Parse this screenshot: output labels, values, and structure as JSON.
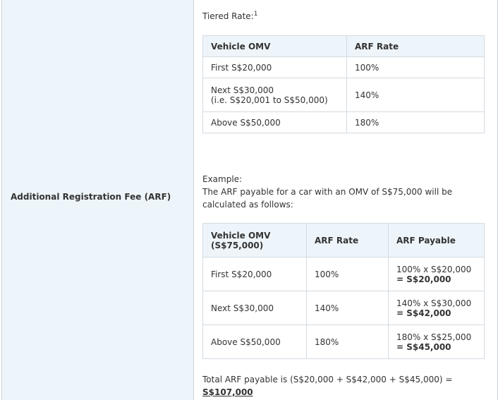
{
  "row_label": "Additional Registration Fee (ARF)",
  "tiered_rate": {
    "label": "Tiered Rate:",
    "footnote": "1"
  },
  "tier_table": {
    "headers": [
      "Vehicle OMV",
      "ARF Rate"
    ],
    "rows": [
      {
        "omv_line1": "First S$20,000",
        "omv_line2": "",
        "rate": "100%"
      },
      {
        "omv_line1": "Next S$30,000",
        "omv_line2": "(i.e. S$20,001 to S$50,000)",
        "rate": "140%"
      },
      {
        "omv_line1": "Above S$50,000",
        "omv_line2": "",
        "rate": "180%"
      }
    ]
  },
  "example": {
    "label": "Example:",
    "text": "The ARF payable for a car with an OMV of S$75,000 will be calculated as follows:"
  },
  "example_table": {
    "headers": {
      "omv_line1": "Vehicle OMV",
      "omv_line2": "(S$75,000)",
      "rate": "ARF Rate",
      "payable": "ARF Payable"
    },
    "rows": [
      {
        "omv": "First S$20,000",
        "rate": "100%",
        "calc": "100% x S$20,000",
        "result": "= S$20,000"
      },
      {
        "omv": "Next S$30,000",
        "rate": "140%",
        "calc": "140% x S$30,000",
        "result": "= S$42,000"
      },
      {
        "omv": "Above S$50,000",
        "rate": "180%",
        "calc": "180% x S$25,000",
        "result": "= S$45,000"
      }
    ]
  },
  "total": {
    "text": "Total ARF payable is (S$20,000 + S$42,000 + S$45,000) =",
    "amount": "S$107,000"
  }
}
